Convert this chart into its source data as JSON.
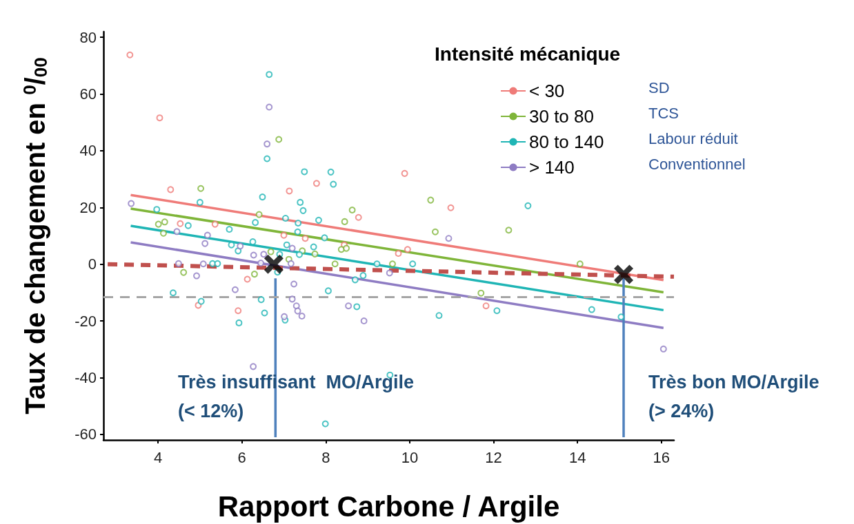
{
  "chart_data": {
    "type": "scatter",
    "xlabel": "Rapport Carbone / Argile",
    "ylabel": "Taux de changement en $^{0}$/$_{00}$",
    "legend_title": "Intensité mécanique",
    "legend": "top right",
    "marker": "circle",
    "xlim": [
      2.7,
      16.3
    ],
    "xticks": [
      4,
      6,
      8,
      10,
      12,
      14,
      16
    ],
    "ylim": [
      -62,
      82
    ],
    "yticks": [
      -60,
      -40,
      -20,
      0,
      20,
      40,
      60,
      80
    ],
    "ref_lines": [
      {
        "axis": "y",
        "value": -11.5,
        "color": "#a6a6a6",
        "line_style": "dashed"
      }
    ],
    "series": [
      {
        "color": "#ef7b78",
        "x": [
          3.33,
          4.04,
          4.3,
          7.13,
          4.53,
          5.36,
          7.0,
          7.51,
          6.13,
          4.96,
          5.91,
          7.78,
          9.88,
          8.78,
          10.98,
          8.44,
          9.73,
          9.95,
          11.82
        ],
        "values": [
          73.8,
          51.6,
          26.3,
          25.8,
          14.3,
          14.1,
          10.2,
          9.1,
          -5.3,
          -14.5,
          -16.4,
          28.5,
          32.0,
          16.5,
          19.9,
          6.8,
          3.8,
          5.2,
          -14.7
        ]
      },
      {
        "color": "#7fb539",
        "x": [
          6.88,
          5.02,
          6.41,
          4.01,
          4.16,
          4.13,
          6.69,
          7.44,
          7.12,
          4.61,
          6.3,
          8.63,
          8.45,
          10.5,
          10.61,
          7.74,
          8.37,
          8.49,
          8.22,
          9.59,
          11.7,
          12.36,
          14.06
        ],
        "values": [
          44.0,
          26.7,
          17.5,
          14.1,
          14.9,
          10.9,
          4.4,
          4.7,
          1.7,
          -2.9,
          -3.5,
          19.1,
          15.0,
          22.6,
          11.4,
          3.6,
          5.2,
          5.6,
          0.1,
          0.1,
          -10.2,
          12.0,
          0.1
        ]
      },
      {
        "color": "#1fb5b5",
        "x": [
          6.65,
          6.6,
          7.49,
          3.97,
          5.0,
          6.49,
          7.39,
          7.46,
          7.04,
          4.72,
          5.7,
          6.32,
          7.34,
          7.33,
          5.75,
          5.91,
          6.26,
          7.07,
          6.9,
          7.37,
          5.3,
          5.42,
          6.85,
          4.36,
          5.03,
          6.46,
          6.54,
          7.03,
          5.93,
          8.12,
          8.18,
          7.83,
          7.97,
          7.71,
          9.22,
          10.07,
          8.89,
          8.7,
          8.06,
          8.74,
          10.7,
          12.08,
          7.99,
          9.53,
          12.82,
          14.34,
          15.04
        ],
        "values": [
          66.9,
          37.2,
          32.6,
          19.3,
          21.8,
          23.7,
          21.8,
          18.9,
          16.2,
          13.6,
          12.3,
          14.7,
          14.5,
          11.4,
          6.8,
          4.7,
          7.9,
          6.8,
          3.5,
          3.4,
          0.2,
          0.2,
          -2.8,
          -10.1,
          -13.1,
          -12.5,
          -17.2,
          -19.7,
          -20.7,
          32.5,
          28.2,
          15.5,
          9.3,
          6.1,
          0.1,
          0.1,
          -4.0,
          -5.5,
          -9.4,
          -15.0,
          -18.1,
          -16.4,
          -56.3,
          -39.1,
          20.6,
          -16.0,
          -18.6
        ]
      },
      {
        "color": "#8e7cc3",
        "x": [
          6.65,
          6.6,
          3.36,
          4.45,
          5.18,
          5.12,
          5.96,
          7.2,
          6.28,
          6.52,
          7.17,
          6.45,
          4.49,
          5.08,
          4.92,
          7.24,
          5.84,
          7.2,
          7.3,
          7.33,
          7.43,
          7.01,
          6.27,
          10.93,
          9.52,
          8.54,
          8.91,
          16.05
        ],
        "values": [
          55.4,
          42.4,
          21.4,
          11.5,
          10.2,
          7.3,
          6.4,
          5.6,
          3.2,
          3.5,
          0.2,
          0.4,
          0.2,
          0.1,
          -4.1,
          -7.0,
          -9.0,
          -12.3,
          -14.7,
          -16.5,
          -18.3,
          -18.5,
          -36.1,
          9.1,
          -3.1,
          -14.7,
          -20.0,
          -29.9
        ]
      },
      {
        "type": "line",
        "name": "< 30",
        "color": "#ef7b78",
        "marker": "none",
        "x": [
          3.35,
          16.05
        ],
        "values": [
          24.4,
          -5.6
        ]
      },
      {
        "type": "line",
        "name": "30 to 80",
        "color": "#7fb539",
        "marker": "none",
        "x": [
          3.35,
          16.05
        ],
        "values": [
          19.6,
          -9.9
        ]
      },
      {
        "type": "line",
        "name": "80 to 140",
        "color": "#1fb5b5",
        "marker": "none",
        "x": [
          3.35,
          16.05
        ],
        "values": [
          13.5,
          -16.2
        ]
      },
      {
        "type": "line",
        "name": "> 140",
        "color": "#8e7cc3",
        "marker": "none",
        "x": [
          3.35,
          16.05
        ],
        "values": [
          7.7,
          -22.5
        ]
      },
      {
        "type": "line",
        "color": "#c0504d",
        "marker": "none",
        "line_style": "dashed",
        "x": [
          2.8,
          16.3
        ],
        "values": [
          0,
          -4.4
        ]
      },
      {
        "type": "line",
        "color": "#4f81bd",
        "marker": "none",
        "x": [
          6.8,
          6.8
        ],
        "values": [
          -5,
          -61
        ]
      },
      {
        "type": "line",
        "color": "#4f81bd",
        "marker": "none",
        "x": [
          15.1,
          15.1
        ],
        "values": [
          -5,
          -61
        ]
      },
      {
        "type": "scatter",
        "color": "#000000",
        "marker": "cross",
        "x": [
          6.76,
          15.1
        ],
        "values": [
          0,
          -3.6
        ]
      }
    ],
    "annotations": [
      "SD",
      "TCS",
      "Labour réduit",
      "Conventionnel",
      "Très insuffisant  MO/Argile\n(< 12%)",
      "Très bon MO/Argile\n(> 24%)"
    ]
  }
}
